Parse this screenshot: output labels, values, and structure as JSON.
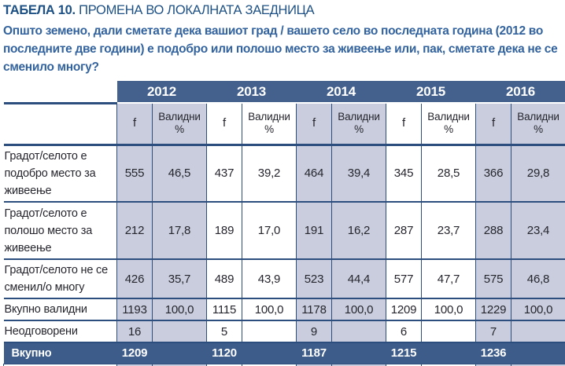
{
  "header": {
    "tag": "ТАБЕЛА 10.",
    "title": "ПРОМЕНА ВО ЛОКАЛНАТА ЗАЕДНИЦА",
    "question": "Општо земено, дали сметате дека вашиот град / вашето село во последната година (2012 во последните две години) е подобро или полошо место за живеење или, пак, сметате дека не се сменило многу?"
  },
  "table": {
    "years": [
      "2012",
      "2013",
      "2014",
      "2015",
      "2016"
    ],
    "col_f": "f",
    "col_valid": "Валидни %",
    "rows": [
      {
        "label": "Градот/селото е подобро место за живеење",
        "values": [
          {
            "f": "555",
            "pct": "46,5"
          },
          {
            "f": "437",
            "pct": "39,2"
          },
          {
            "f": "464",
            "pct": "39,4"
          },
          {
            "f": "345",
            "pct": "28,5"
          },
          {
            "f": "366",
            "pct": "29,8"
          }
        ]
      },
      {
        "label": "Градот/селото е полошо место за живеење",
        "values": [
          {
            "f": "212",
            "pct": "17,8"
          },
          {
            "f": "189",
            "pct": "17,0"
          },
          {
            "f": "191",
            "pct": "16,2"
          },
          {
            "f": "287",
            "pct": "23,7"
          },
          {
            "f": "288",
            "pct": "23,4"
          }
        ]
      },
      {
        "label": "Градот/селото не се сменил/о многу",
        "values": [
          {
            "f": "426",
            "pct": "35,7"
          },
          {
            "f": "489",
            "pct": "43,9"
          },
          {
            "f": "523",
            "pct": "44,4"
          },
          {
            "f": "577",
            "pct": "47,7"
          },
          {
            "f": "575",
            "pct": "46,8"
          }
        ]
      },
      {
        "label": "Вкупно валидни",
        "values": [
          {
            "f": "1193",
            "pct": "100,0"
          },
          {
            "f": "1115",
            "pct": "100,0"
          },
          {
            "f": "1178",
            "pct": "100,0"
          },
          {
            "f": "1209",
            "pct": "100,0"
          },
          {
            "f": "1229",
            "pct": "100,0"
          }
        ]
      },
      {
        "label": "Неодговорени",
        "values": [
          {
            "f": "16",
            "pct": ""
          },
          {
            "f": "5",
            "pct": ""
          },
          {
            "f": "9",
            "pct": ""
          },
          {
            "f": "6",
            "pct": ""
          },
          {
            "f": "7",
            "pct": ""
          }
        ]
      }
    ],
    "total": {
      "label": "Вкупно",
      "values": [
        "1209",
        "1120",
        "1187",
        "1215",
        "1236"
      ]
    }
  },
  "colors": {
    "header_bar": "#44618E",
    "total_bar": "#3E5C8A",
    "cell_shade": "#C9CDDD",
    "grid_line": "#2B4E7E",
    "title_text": "#1D5084",
    "question_text": "#33639E"
  }
}
